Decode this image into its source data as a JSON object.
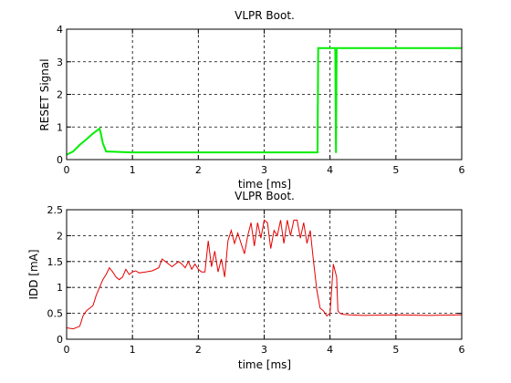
{
  "chart_data": [
    {
      "type": "line",
      "title": "VLPR Boot.",
      "xlabel": "time [ms]",
      "ylabel": "RESET Signal",
      "xlim": [
        0,
        6
      ],
      "ylim": [
        0,
        4
      ],
      "xticks": [
        0,
        1,
        2,
        3,
        4,
        5,
        6
      ],
      "yticks": [
        0,
        1,
        2,
        3,
        4
      ],
      "grid": true,
      "color": "#00ee00",
      "series": [
        {
          "x": [
            0,
            0.1,
            0.2,
            0.3,
            0.4,
            0.5,
            0.52,
            0.55,
            0.6,
            1.0,
            2.0,
            3.0,
            3.8,
            3.81,
            3.82,
            4.0,
            4.08,
            4.09,
            4.1,
            4.11,
            4.2,
            5.0,
            6.0
          ],
          "y": [
            0.15,
            0.25,
            0.45,
            0.62,
            0.8,
            0.95,
            0.8,
            0.5,
            0.25,
            0.22,
            0.22,
            0.22,
            0.22,
            0.22,
            3.42,
            3.42,
            3.42,
            0.2,
            3.42,
            3.42,
            3.42,
            3.42,
            3.42
          ]
        }
      ]
    },
    {
      "type": "line",
      "title": "VLPR Boot.",
      "xlabel": "time [ms]",
      "ylabel": "IDD [mA]",
      "xlim": [
        0,
        6
      ],
      "ylim": [
        0,
        2.5
      ],
      "xticks": [
        0,
        1,
        2,
        3,
        4,
        5,
        6
      ],
      "yticks": [
        0,
        0.5,
        1,
        1.5,
        2,
        2.5
      ],
      "grid": true,
      "color": "#e60000",
      "series": [
        {
          "x": [
            0,
            0.1,
            0.2,
            0.25,
            0.3,
            0.4,
            0.45,
            0.5,
            0.55,
            0.6,
            0.65,
            0.7,
            0.75,
            0.8,
            0.85,
            0.9,
            0.95,
            1.0,
            1.05,
            1.1,
            1.2,
            1.3,
            1.4,
            1.45,
            1.5,
            1.55,
            1.6,
            1.7,
            1.75,
            1.8,
            1.85,
            1.9,
            1.95,
            2.0,
            2.05,
            2.1,
            2.15,
            2.2,
            2.25,
            2.3,
            2.35,
            2.4,
            2.45,
            2.5,
            2.55,
            2.6,
            2.65,
            2.7,
            2.75,
            2.8,
            2.85,
            2.9,
            2.95,
            3.0,
            3.05,
            3.1,
            3.15,
            3.2,
            3.25,
            3.3,
            3.35,
            3.4,
            3.45,
            3.5,
            3.55,
            3.6,
            3.65,
            3.7,
            3.75,
            3.8,
            3.85,
            3.9,
            3.95,
            4.0,
            4.05,
            4.1,
            4.12,
            4.15,
            4.2,
            4.3,
            4.5,
            5.0,
            5.5,
            6.0
          ],
          "y": [
            0.22,
            0.2,
            0.25,
            0.45,
            0.55,
            0.65,
            0.85,
            1.0,
            1.15,
            1.25,
            1.38,
            1.3,
            1.2,
            1.15,
            1.2,
            1.35,
            1.25,
            1.3,
            1.32,
            1.28,
            1.3,
            1.32,
            1.38,
            1.55,
            1.5,
            1.45,
            1.4,
            1.5,
            1.45,
            1.38,
            1.5,
            1.35,
            1.45,
            1.35,
            1.3,
            1.3,
            1.9,
            1.4,
            1.7,
            1.3,
            1.55,
            1.2,
            1.9,
            2.1,
            1.85,
            2.05,
            1.85,
            1.65,
            2.0,
            2.25,
            1.8,
            2.25,
            1.95,
            2.3,
            2.25,
            1.75,
            2.1,
            2.0,
            2.3,
            1.85,
            2.3,
            2.0,
            2.3,
            2.3,
            1.95,
            2.25,
            1.85,
            2.1,
            1.5,
            0.95,
            0.6,
            0.55,
            0.45,
            0.5,
            1.45,
            1.2,
            0.55,
            0.5,
            0.48,
            0.47,
            0.46,
            0.47,
            0.46,
            0.47
          ]
        }
      ]
    }
  ]
}
